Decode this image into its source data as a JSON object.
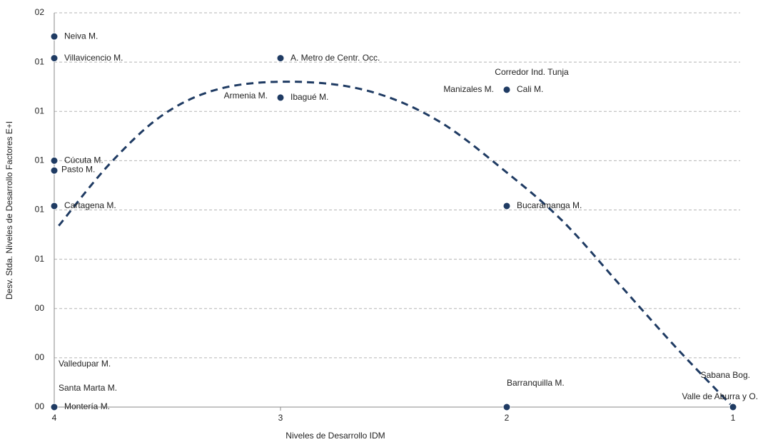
{
  "chart_data": {
    "type": "scatter",
    "x_label": "Niveles de Desarrollo IDM",
    "y_label": "Desv. Stda. Niveles de Desarrollo Factores E+I",
    "color": "#1f3b63",
    "labels": [
      "Neiva M.",
      "Villavicencio M.",
      "A. Metro de Centr. Occ.",
      "Armenia M.",
      "Ibagué M.",
      "Manizales M.",
      "Cali M.",
      "Corredor Ind. Tunja",
      "Cúcuta M.",
      "Pasto M.",
      "Cartagena M.",
      "Bucaramanga M.",
      "Valledupar M.",
      "Santa Marta M.",
      "Montería M.",
      "Barranquilla M.",
      "Sabana Bog.",
      "Valle de Aburra y O."
    ],
    "x": [
      4,
      4,
      3,
      3,
      3,
      2,
      2,
      2,
      4,
      4,
      4,
      2,
      4,
      4,
      4,
      2,
      1,
      1
    ],
    "values": [
      1.88,
      1.77,
      1.77,
      1.57,
      1.57,
      1.61,
      1.61,
      1.61,
      1.25,
      1.2,
      1.02,
      1.02,
      0,
      0,
      0,
      0,
      0,
      0
    ],
    "trendline": {
      "x": [
        3.98,
        3.75,
        3.51,
        3.25,
        2.92,
        2.6,
        2.3,
        2.0,
        1.75,
        1.5,
        1.25,
        1.0
      ],
      "y": [
        0.92,
        1.24,
        1.49,
        1.62,
        1.65,
        1.6,
        1.45,
        1.19,
        0.94,
        0.62,
        0.3,
        0
      ]
    },
    "xlim": [
      4,
      1
    ],
    "xticks": [
      4,
      3,
      2,
      1
    ],
    "ylim": [
      0,
      2
    ],
    "yticks": [
      {
        "value": 0,
        "label": "00"
      },
      {
        "value": 0.25,
        "label": "00"
      },
      {
        "value": 0.5,
        "label": "00"
      },
      {
        "value": 0.75,
        "label": "01"
      },
      {
        "value": 1,
        "label": "01"
      },
      {
        "value": 1.25,
        "label": "01"
      },
      {
        "value": 1.5,
        "label": "01"
      },
      {
        "value": 1.75,
        "label": "01"
      },
      {
        "value": 2,
        "label": "02"
      }
    ],
    "grid": true
  }
}
